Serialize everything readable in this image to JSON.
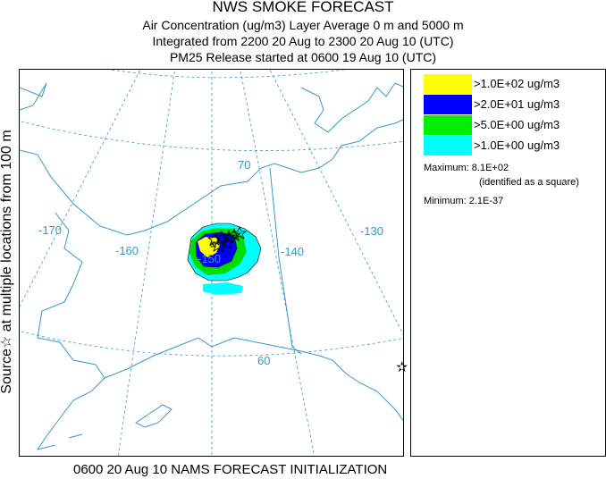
{
  "header": {
    "title": "NWS SMOKE FORECAST",
    "line2": "Air Concentration (ug/m3) Layer Average    0 m and  5000 m",
    "line3": "Integrated from 2200 20 Aug to 2300 20 Aug 10 (UTC)",
    "line4": "PM25 Release started at 0600 19 Aug 10 (UTC)"
  },
  "side_label": "Source☆ at multiple locations from 100 m",
  "footer": "0600 20 Aug 10 NAMS FORECAST INITIALIZATION",
  "map": {
    "grid_labels": {
      "lat70": "70",
      "lat60": "60",
      "lon170": "-170",
      "lon160": "-160",
      "lon150": "-150",
      "lon140": "-140",
      "lon130": "-130"
    },
    "colors": {
      "coast": "#3399cc",
      "grid": "#3399cc",
      "level1": "#00ffff",
      "level5": "#00dd00",
      "level20": "#0000ff",
      "level100": "#ffff00"
    }
  },
  "legend": {
    "entries": [
      {
        "label": ">1.0E+02 ug/m3",
        "color": "#ffff00"
      },
      {
        "label": ">2.0E+01 ug/m3",
        "color": "#0000ff"
      },
      {
        "label": ">5.0E+00 ug/m3",
        "color": "#00ee00"
      },
      {
        "label": ">1.0E+00 ug/m3",
        "color": "#00ffff"
      }
    ],
    "maximum": "Maximum: 8.1E+02",
    "maximum_note": "(identified as a square)",
    "minimum": "Minimum: 2.1E-37"
  },
  "icons": {
    "source_marker": "star-icon"
  }
}
